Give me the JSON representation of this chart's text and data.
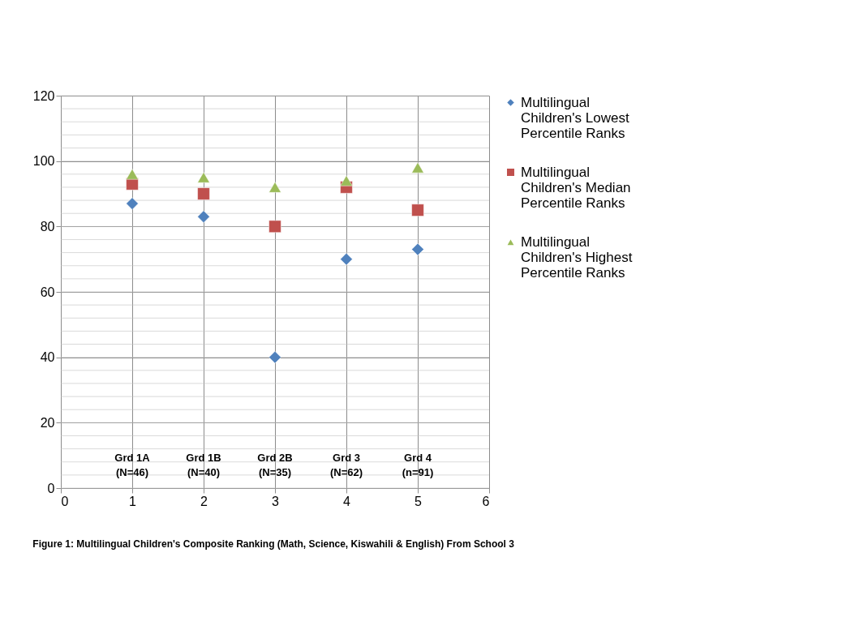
{
  "chart_data": {
    "type": "scatter",
    "title": "Figure 1: Multilingual Children's Composite Ranking (Math, Science, Kiswahili & English) From School 3",
    "x": [
      1,
      2,
      3,
      4,
      5
    ],
    "series": [
      {
        "name": "Multilingual Children's Lowest Percentile Ranks",
        "color": "#4f81bd",
        "marker": "diamond",
        "values": [
          87,
          83,
          40,
          70,
          73
        ]
      },
      {
        "name": "Multilingual Children's Median Percentile Ranks",
        "color": "#c0504d",
        "marker": "square",
        "values": [
          93,
          90,
          80,
          92,
          85
        ]
      },
      {
        "name": "Multilingual Children's Highest Percentile Ranks",
        "color": "#9bbb59",
        "marker": "triangle",
        "values": [
          96,
          95,
          92,
          94,
          98
        ]
      }
    ],
    "annotations": [
      "Grd  1A\n(N=46)",
      "Grd 1B\n(N=40)",
      "Grd 2B\n(N=35)",
      "Grd 3\n(N=62)",
      "Grd 4\n(n=91)"
    ],
    "xlim": [
      0,
      6
    ],
    "xticks": [
      0,
      1,
      2,
      3,
      4,
      5,
      6
    ],
    "ylim": [
      0,
      120
    ],
    "yticks": [
      0,
      20,
      40,
      60,
      80,
      100,
      120
    ],
    "grid": true,
    "legend": "right"
  }
}
